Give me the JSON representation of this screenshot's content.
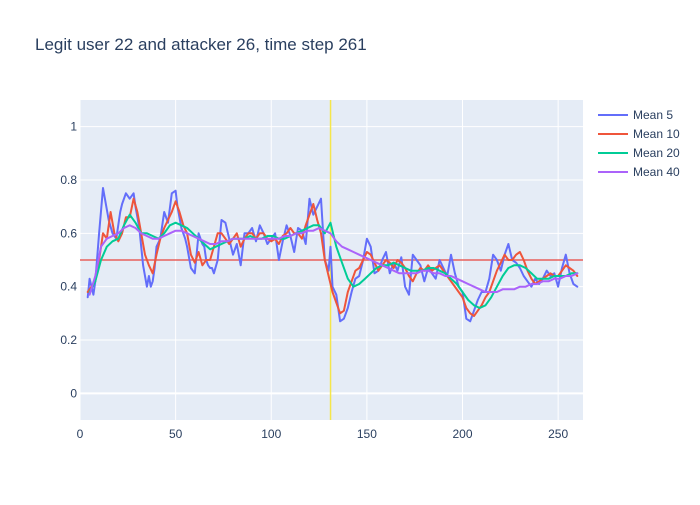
{
  "chart_data": {
    "type": "line",
    "title": "Legit user 22 and attacker 26, time step 261",
    "xlabel": "",
    "ylabel": "",
    "xlim": [
      0,
      263
    ],
    "ylim": [
      -0.1,
      1.1
    ],
    "x_ticks": [
      0,
      50,
      100,
      150,
      200,
      250
    ],
    "y_ticks": [
      0,
      0.2,
      0.4,
      0.6,
      0.8,
      1
    ],
    "y_tick_labels": [
      "0",
      "0.2",
      "0.4",
      "0.6",
      "0.8",
      "1"
    ],
    "grid": true,
    "legend_position": "top-right",
    "threshold": {
      "y": 0.5,
      "color": "#e8605c"
    },
    "vertical_marker": {
      "x": 131,
      "color": "#f5e64b"
    },
    "series": [
      {
        "name": "Mean 5",
        "color": "#636efa",
        "x": [
          4,
          5,
          6,
          7,
          8,
          10,
          12,
          13,
          15,
          17,
          19,
          21,
          22,
          24,
          26,
          28,
          29,
          31,
          33,
          35,
          36,
          37,
          38,
          39,
          40,
          42,
          44,
          46,
          48,
          50,
          51,
          53,
          55,
          56,
          58,
          60,
          62,
          64,
          65,
          66,
          67,
          68,
          69,
          70,
          72,
          74,
          76,
          78,
          80,
          82,
          84,
          86,
          88,
          90,
          92,
          94,
          96,
          98,
          100,
          102,
          104,
          106,
          108,
          110,
          112,
          114,
          116,
          118,
          120,
          122,
          124,
          126,
          128,
          130,
          131,
          132,
          134,
          136,
          138,
          140,
          142,
          144,
          146,
          148,
          150,
          152,
          154,
          156,
          158,
          160,
          162,
          164,
          166,
          168,
          170,
          172,
          174,
          176,
          178,
          180,
          182,
          184,
          186,
          188,
          190,
          192,
          194,
          196,
          198,
          200,
          202,
          204,
          206,
          208,
          210,
          212,
          214,
          216,
          218,
          220,
          222,
          224,
          226,
          228,
          230,
          232,
          234,
          236,
          238,
          240,
          242,
          244,
          246,
          248,
          250,
          252,
          254,
          256,
          258,
          260
        ],
        "values": [
          0.36,
          0.43,
          0.4,
          0.37,
          0.42,
          0.6,
          0.77,
          0.73,
          0.65,
          0.6,
          0.58,
          0.68,
          0.71,
          0.75,
          0.73,
          0.75,
          0.7,
          0.62,
          0.48,
          0.4,
          0.44,
          0.4,
          0.42,
          0.47,
          0.55,
          0.58,
          0.68,
          0.64,
          0.75,
          0.76,
          0.7,
          0.62,
          0.58,
          0.55,
          0.47,
          0.45,
          0.6,
          0.56,
          0.55,
          0.5,
          0.48,
          0.47,
          0.47,
          0.45,
          0.5,
          0.65,
          0.64,
          0.58,
          0.52,
          0.56,
          0.48,
          0.6,
          0.6,
          0.62,
          0.57,
          0.63,
          0.6,
          0.56,
          0.58,
          0.6,
          0.5,
          0.57,
          0.63,
          0.59,
          0.53,
          0.62,
          0.61,
          0.56,
          0.73,
          0.67,
          0.7,
          0.73,
          0.5,
          0.46,
          0.55,
          0.4,
          0.37,
          0.27,
          0.28,
          0.32,
          0.38,
          0.43,
          0.44,
          0.5,
          0.58,
          0.55,
          0.45,
          0.46,
          0.5,
          0.53,
          0.45,
          0.49,
          0.46,
          0.51,
          0.4,
          0.37,
          0.52,
          0.5,
          0.48,
          0.42,
          0.47,
          0.45,
          0.43,
          0.5,
          0.47,
          0.44,
          0.52,
          0.45,
          0.4,
          0.38,
          0.28,
          0.27,
          0.31,
          0.35,
          0.38,
          0.38,
          0.43,
          0.52,
          0.5,
          0.46,
          0.52,
          0.56,
          0.5,
          0.49,
          0.47,
          0.44,
          0.42,
          0.4,
          0.43,
          0.41,
          0.43,
          0.46,
          0.44,
          0.45,
          0.4,
          0.47,
          0.52,
          0.45,
          0.41,
          0.4
        ]
      },
      {
        "name": "Mean 10",
        "color": "#ef553b",
        "x": [
          4,
          6,
          8,
          10,
          12,
          14,
          16,
          18,
          20,
          22,
          24,
          26,
          28,
          30,
          32,
          34,
          36,
          38,
          40,
          42,
          44,
          46,
          48,
          50,
          52,
          54,
          56,
          58,
          60,
          62,
          64,
          66,
          68,
          70,
          72,
          74,
          76,
          78,
          80,
          82,
          84,
          86,
          88,
          90,
          92,
          94,
          96,
          98,
          100,
          102,
          104,
          106,
          108,
          110,
          112,
          114,
          116,
          118,
          120,
          122,
          124,
          126,
          128,
          130,
          132,
          134,
          136,
          138,
          140,
          142,
          144,
          146,
          148,
          150,
          152,
          154,
          156,
          158,
          160,
          162,
          164,
          166,
          168,
          170,
          172,
          174,
          176,
          178,
          180,
          182,
          184,
          186,
          188,
          190,
          192,
          194,
          196,
          198,
          200,
          202,
          204,
          206,
          208,
          210,
          212,
          214,
          216,
          218,
          220,
          222,
          224,
          226,
          228,
          230,
          232,
          234,
          236,
          238,
          240,
          242,
          244,
          246,
          248,
          250,
          252,
          254,
          256,
          258,
          260
        ],
        "values": [
          0.38,
          0.4,
          0.42,
          0.5,
          0.6,
          0.58,
          0.68,
          0.6,
          0.57,
          0.6,
          0.66,
          0.66,
          0.73,
          0.68,
          0.6,
          0.52,
          0.48,
          0.45,
          0.52,
          0.58,
          0.62,
          0.65,
          0.68,
          0.72,
          0.68,
          0.63,
          0.6,
          0.52,
          0.49,
          0.53,
          0.48,
          0.5,
          0.5,
          0.55,
          0.6,
          0.6,
          0.58,
          0.56,
          0.58,
          0.6,
          0.55,
          0.58,
          0.6,
          0.6,
          0.58,
          0.6,
          0.6,
          0.58,
          0.57,
          0.58,
          0.56,
          0.59,
          0.6,
          0.62,
          0.6,
          0.6,
          0.58,
          0.63,
          0.67,
          0.71,
          0.65,
          0.6,
          0.5,
          0.44,
          0.38,
          0.34,
          0.3,
          0.31,
          0.38,
          0.42,
          0.46,
          0.47,
          0.5,
          0.53,
          0.52,
          0.49,
          0.46,
          0.48,
          0.5,
          0.49,
          0.47,
          0.5,
          0.49,
          0.47,
          0.44,
          0.42,
          0.45,
          0.47,
          0.46,
          0.48,
          0.46,
          0.47,
          0.48,
          0.46,
          0.44,
          0.42,
          0.4,
          0.38,
          0.36,
          0.32,
          0.3,
          0.29,
          0.31,
          0.33,
          0.36,
          0.38,
          0.42,
          0.46,
          0.49,
          0.52,
          0.5,
          0.5,
          0.52,
          0.53,
          0.5,
          0.46,
          0.43,
          0.41,
          0.42,
          0.43,
          0.44,
          0.45,
          0.44,
          0.44,
          0.46,
          0.48,
          0.47,
          0.46,
          0.44
        ]
      },
      {
        "name": "Mean 20",
        "color": "#00cc96",
        "x": [
          5,
          8,
          11,
          14,
          17,
          20,
          23,
          26,
          29,
          32,
          35,
          38,
          41,
          44,
          47,
          50,
          53,
          56,
          59,
          62,
          65,
          68,
          71,
          74,
          77,
          80,
          83,
          86,
          89,
          92,
          95,
          98,
          101,
          104,
          107,
          110,
          113,
          116,
          119,
          122,
          125,
          128,
          131,
          134,
          137,
          140,
          143,
          146,
          149,
          152,
          155,
          158,
          161,
          164,
          167,
          170,
          173,
          176,
          179,
          182,
          185,
          188,
          191,
          194,
          197,
          200,
          203,
          206,
          209,
          212,
          215,
          218,
          221,
          224,
          227,
          230,
          233,
          236,
          239,
          242,
          245,
          248,
          251,
          254,
          257,
          260
        ],
        "values": [
          0.38,
          0.42,
          0.5,
          0.55,
          0.57,
          0.58,
          0.63,
          0.67,
          0.64,
          0.6,
          0.6,
          0.59,
          0.58,
          0.6,
          0.63,
          0.64,
          0.63,
          0.62,
          0.6,
          0.58,
          0.56,
          0.54,
          0.55,
          0.56,
          0.57,
          0.58,
          0.58,
          0.58,
          0.59,
          0.58,
          0.58,
          0.59,
          0.59,
          0.58,
          0.58,
          0.59,
          0.6,
          0.61,
          0.62,
          0.63,
          0.63,
          0.6,
          0.64,
          0.55,
          0.49,
          0.43,
          0.4,
          0.41,
          0.43,
          0.45,
          0.47,
          0.48,
          0.48,
          0.49,
          0.48,
          0.47,
          0.46,
          0.46,
          0.46,
          0.47,
          0.47,
          0.46,
          0.45,
          0.43,
          0.41,
          0.38,
          0.35,
          0.33,
          0.32,
          0.33,
          0.36,
          0.4,
          0.44,
          0.47,
          0.48,
          0.48,
          0.47,
          0.45,
          0.43,
          0.43,
          0.43,
          0.44,
          0.44,
          0.44,
          0.45,
          0.45
        ]
      },
      {
        "name": "Mean 40",
        "color": "#ab63fa",
        "x": [
          5,
          8,
          11,
          14,
          17,
          20,
          23,
          26,
          29,
          32,
          35,
          38,
          41,
          44,
          47,
          50,
          53,
          56,
          59,
          62,
          65,
          68,
          71,
          74,
          77,
          80,
          83,
          86,
          89,
          92,
          95,
          98,
          101,
          104,
          107,
          110,
          113,
          116,
          119,
          122,
          125,
          128,
          131,
          134,
          137,
          140,
          143,
          146,
          149,
          152,
          155,
          158,
          161,
          164,
          167,
          170,
          173,
          176,
          179,
          182,
          185,
          188,
          191,
          194,
          197,
          200,
          203,
          206,
          209,
          212,
          215,
          218,
          221,
          224,
          227,
          230,
          233,
          236,
          239,
          242,
          245,
          248,
          251,
          254,
          257,
          260
        ],
        "values": [
          0.37,
          0.44,
          0.55,
          0.58,
          0.59,
          0.6,
          0.62,
          0.63,
          0.62,
          0.6,
          0.59,
          0.58,
          0.58,
          0.59,
          0.6,
          0.61,
          0.61,
          0.6,
          0.59,
          0.58,
          0.57,
          0.56,
          0.56,
          0.57,
          0.57,
          0.58,
          0.58,
          0.58,
          0.58,
          0.58,
          0.58,
          0.58,
          0.58,
          0.58,
          0.59,
          0.59,
          0.6,
          0.6,
          0.61,
          0.61,
          0.62,
          0.61,
          0.6,
          0.57,
          0.55,
          0.54,
          0.53,
          0.52,
          0.51,
          0.5,
          0.49,
          0.48,
          0.47,
          0.46,
          0.45,
          0.45,
          0.45,
          0.45,
          0.46,
          0.46,
          0.45,
          0.45,
          0.44,
          0.44,
          0.43,
          0.42,
          0.41,
          0.4,
          0.39,
          0.38,
          0.38,
          0.38,
          0.39,
          0.39,
          0.39,
          0.4,
          0.4,
          0.41,
          0.41,
          0.42,
          0.42,
          0.43,
          0.43,
          0.44,
          0.44,
          0.45
        ]
      }
    ]
  }
}
